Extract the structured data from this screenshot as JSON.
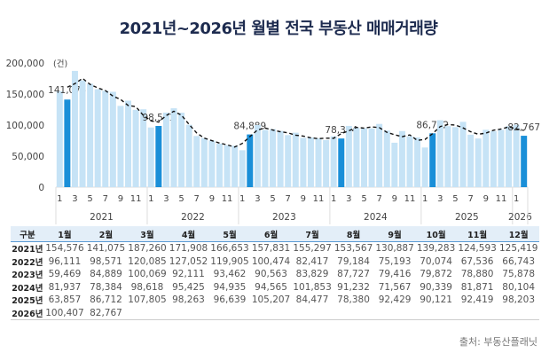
{
  "title": "2021년~2026년 월별 전국 부동산 매매거래량",
  "source": "출처: 부동산플래닛",
  "chart_data": {
    "type": "bar",
    "unit_label": "(건)",
    "ylim": [
      0,
      200000
    ],
    "yticks": [
      "0",
      "50,000",
      "100,000",
      "150,000",
      "200,000"
    ],
    "years": [
      "2021",
      "2022",
      "2023",
      "2024",
      "2025",
      "2026"
    ],
    "month_tick_labels": [
      "1",
      "3",
      "5",
      "7",
      "9",
      "11"
    ],
    "highlight_month": 2,
    "colors": {
      "bar": "#c6e3f6",
      "highlight": "#1a8fd8",
      "trend": "#111111"
    },
    "highlight_labels": [
      "141,075",
      "98,571",
      "84,889",
      "78,384",
      "86,712",
      "82,767"
    ],
    "trend_line": "dashed",
    "grid": false
  },
  "table": {
    "headers": [
      "구분",
      "1월",
      "2월",
      "3월",
      "4월",
      "5월",
      "6월",
      "7월",
      "8월",
      "9월",
      "10월",
      "11월",
      "12월"
    ],
    "rows": [
      {
        "label": "2021년",
        "values": [
          "154,576",
          "141,075",
          "187,260",
          "171,908",
          "166,653",
          "157,831",
          "155,297",
          "153,567",
          "130,887",
          "139,283",
          "124,593",
          "125,419"
        ]
      },
      {
        "label": "2022년",
        "values": [
          "96,111",
          "98,571",
          "120,085",
          "127,052",
          "119,905",
          "100,474",
          "82,417",
          "79,184",
          "75,193",
          "70,074",
          "67,536",
          "66,743"
        ]
      },
      {
        "label": "2023년",
        "values": [
          "59,469",
          "84,889",
          "100,069",
          "92,111",
          "93,462",
          "90,563",
          "83,829",
          "87,727",
          "79,416",
          "79,872",
          "78,880",
          "75,878"
        ]
      },
      {
        "label": "2024년",
        "values": [
          "81,937",
          "78,384",
          "98,618",
          "95,425",
          "94,935",
          "94,565",
          "101,853",
          "91,232",
          "71,567",
          "90,339",
          "81,871",
          "80,104"
        ]
      },
      {
        "label": "2025년",
        "values": [
          "63,857",
          "86,712",
          "107,805",
          "98,263",
          "96,639",
          "105,207",
          "84,477",
          "78,380",
          "92,429",
          "90,121",
          "92,419",
          "98,203"
        ]
      },
      {
        "label": "2026년",
        "values": [
          "100,407",
          "82,767",
          "",
          "",
          "",
          "",
          "",
          "",
          "",
          "",
          "",
          ""
        ]
      }
    ]
  }
}
